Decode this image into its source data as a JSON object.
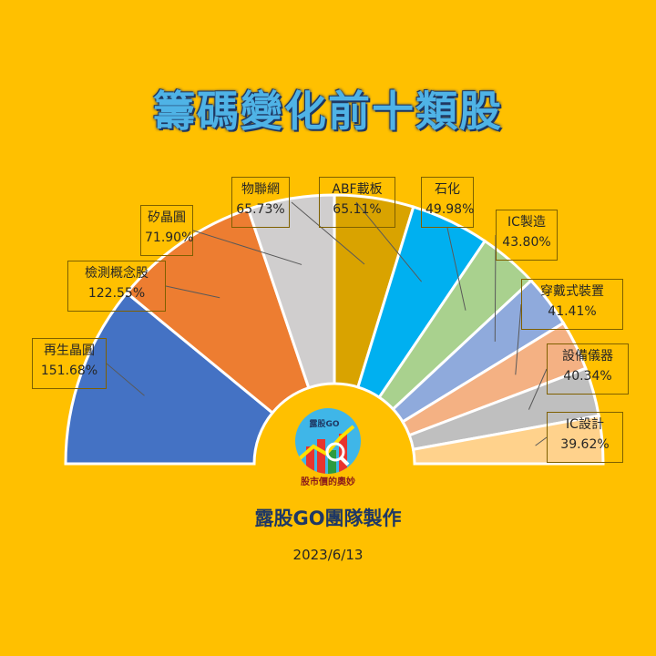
{
  "title": "籌碼變化前十類股",
  "credit": "露股GO團隊製作",
  "date": "2023/6/13",
  "logo": {
    "top_text": "露股GO",
    "bottom_text": "股市價的奧妙"
  },
  "chart_data": {
    "type": "pie",
    "title": "籌碼變化前十類股",
    "variant": "half-doughnut",
    "slices": [
      {
        "label": "再生晶圓",
        "value": 151.68,
        "display": "151.68%",
        "color": "#4472C4"
      },
      {
        "label": "檢測概念股",
        "value": 122.55,
        "display": "122.55%",
        "color": "#ED7D31"
      },
      {
        "label": "矽晶圓",
        "value": 71.9,
        "display": "71.90%",
        "color": "#D0CECE"
      },
      {
        "label": "物聯網",
        "value": 65.73,
        "display": "65.73%",
        "color": "#D9A300"
      },
      {
        "label": "ABF載板",
        "value": 65.11,
        "display": "65.11%",
        "color": "#00B0F0"
      },
      {
        "label": "石化",
        "value": 49.98,
        "display": "49.98%",
        "color": "#A9D18E"
      },
      {
        "label": "IC製造",
        "value": 43.8,
        "display": "43.80%",
        "color": "#8FAADC"
      },
      {
        "label": "穿戴式裝置",
        "value": 41.41,
        "display": "41.41%",
        "color": "#F4B183"
      },
      {
        "label": "設備儀器",
        "value": 40.34,
        "display": "40.34%",
        "color": "#BFBFBF"
      },
      {
        "label": "IC設計",
        "value": 39.62,
        "display": "39.62%",
        "color": "#FFD28C"
      }
    ]
  }
}
